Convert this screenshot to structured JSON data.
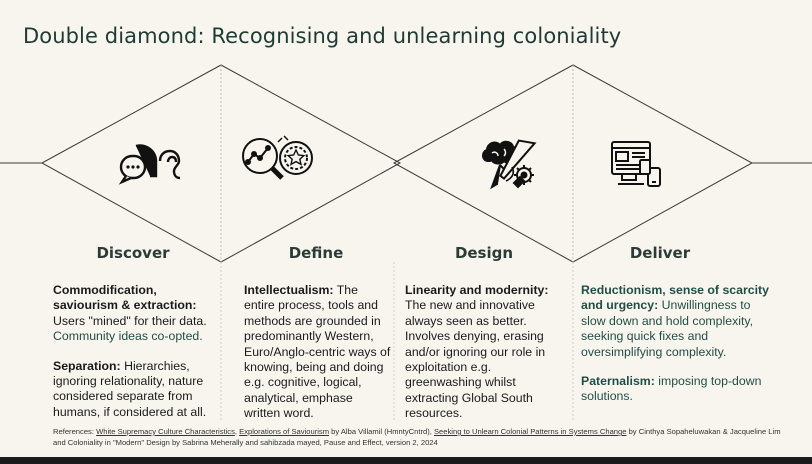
{
  "title": "Double diamond: Recognising and unlearning coloniality",
  "phases": [
    "Discover",
    "Define",
    "Design",
    "Deliver"
  ],
  "icons": [
    "speech-bubbles-ear-icon",
    "analysis-magnifier-icon",
    "brain-pencil-gear-icon",
    "devices-icon"
  ],
  "col1": {
    "h1": "Commodification, saviourism & extraction:",
    "t1a": " Users \"mined\" for their data.",
    "t1b": "Community ideas co-opted.",
    "h2": "Separation:",
    "t2": " Hierarchies, ignoring relationality, nature considered separate from humans, if considered at all."
  },
  "col2": {
    "h1": "Intellectualism:",
    "t1": " The entire process, tools and methods are grounded in predominantly Western, Euro/Anglo-centric ways of knowing, being and doing e.g. cognitive, logical, analytical, emphase written word."
  },
  "col3": {
    "h1": "Linearity and modernity:",
    "t1": " The new and innovative always seen as better. Involves denying, erasing and/or ignoring our role in exploitation e.g. greenwashing whilst extracting Global South resources."
  },
  "col4": {
    "h1": "Reductionism, sense of scarcity and urgency:",
    "t1": " Unwillingness to slow down and hold complexity, seeking quick fixes and oversimplifying complexity.",
    "h2": "Paternalism:",
    "t2": " imposing top-down solutions."
  },
  "refs": {
    "prefix": "References: ",
    "r1": "White Supremacy Culture Characteristics",
    "sep1": ", ",
    "r2": "Explorations of Saviourism",
    "mid1": " by Alba Villamil (HmntyCntrd), ",
    "r3": "Seeking to Unlearn Colonial Patterns in Systems Change",
    "tail": " by Cinthya Sopaheluwakan & Jacqueline Lim and Coloniality in \"Modern\" Design by Sabrina Meherally and sahibzada mayed, Pause and Effect, version 2, 2024"
  },
  "colors": {
    "line": "#3a3a3a",
    "dash": "#bdbdbd",
    "teal": "#1f4e46"
  }
}
